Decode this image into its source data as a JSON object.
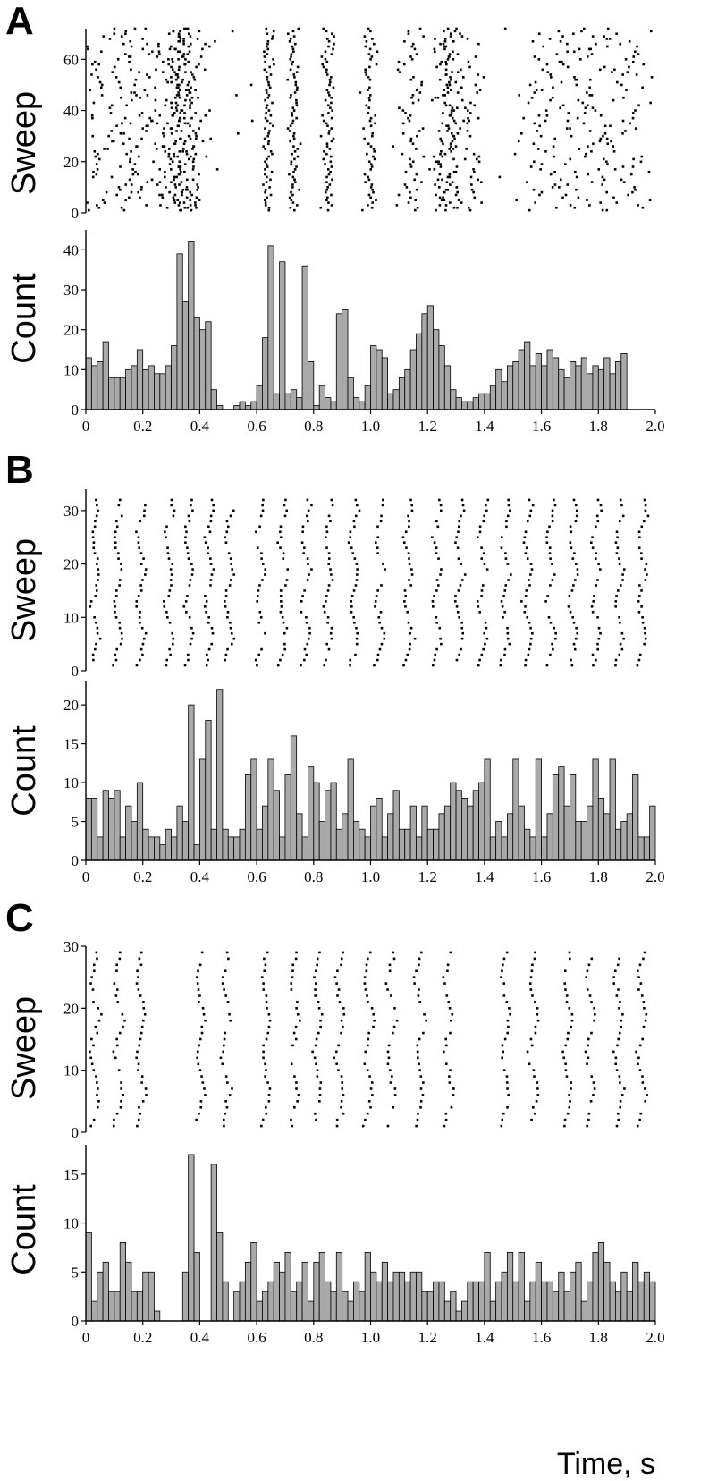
{
  "figure": {
    "xlabel": "Time, s"
  },
  "chart_data": [
    {
      "panel": "A",
      "type": "scatter",
      "kind": "raster",
      "xlim": [
        0,
        2.0
      ],
      "ylim": [
        0,
        72
      ],
      "ylabel": "Sweep",
      "xticks": [],
      "yticks": [
        0,
        20,
        40,
        60
      ],
      "sweeps": 72,
      "clusters": [
        {
          "c": 0.05,
          "s": 0.06,
          "p": 1.0,
          "n": 1,
          "d": 0
        },
        {
          "c": 0.15,
          "s": 0.05,
          "p": 1.0,
          "n": 1,
          "d": 0
        },
        {
          "c": 0.27,
          "s": 0.04,
          "p": 0.9,
          "n": 1,
          "d": 0
        },
        {
          "c": 0.33,
          "s": 0.02,
          "p": 1.0,
          "n": 2,
          "d": 0
        },
        {
          "c": 0.38,
          "s": 0.02,
          "p": 0.9,
          "n": 1,
          "d": 0
        },
        {
          "c": 0.45,
          "s": 0.02,
          "p": 0.05,
          "n": 1,
          "d": 0
        },
        {
          "c": 0.55,
          "s": 0.03,
          "p": 0.05,
          "n": 1,
          "d": 0
        },
        {
          "c": 0.64,
          "s": 0.01,
          "p": 1.0,
          "n": 1,
          "d": 0
        },
        {
          "c": 0.73,
          "s": 0.01,
          "p": 1.0,
          "n": 1,
          "d": 0
        },
        {
          "c": 0.85,
          "s": 0.012,
          "p": 1.0,
          "n": 1,
          "d": 0
        },
        {
          "c": 1.0,
          "s": 0.015,
          "p": 0.9,
          "n": 1,
          "d": 0
        },
        {
          "c": 1.13,
          "s": 0.03,
          "p": 0.9,
          "n": 1,
          "d": 0
        },
        {
          "c": 1.27,
          "s": 0.03,
          "p": 1.0,
          "n": 2,
          "d": 0
        },
        {
          "c": 1.36,
          "s": 0.02,
          "p": 0.5,
          "n": 1,
          "d": 0
        },
        {
          "c": 1.6,
          "s": 0.06,
          "p": 1.0,
          "n": 1,
          "d": 0
        },
        {
          "c": 1.75,
          "s": 0.06,
          "p": 1.0,
          "n": 1,
          "d": 0
        },
        {
          "c": 1.9,
          "s": 0.06,
          "p": 1.0,
          "n": 1,
          "d": 0
        }
      ]
    },
    {
      "panel": "A",
      "type": "bar",
      "kind": "histogram",
      "xlim": [
        0,
        2.0
      ],
      "ylim": [
        0,
        45
      ],
      "ylabel": "Count",
      "xticks": [
        0,
        0.2,
        0.4,
        0.6,
        0.8,
        1.0,
        1.2,
        1.4,
        1.6,
        1.8,
        2.0
      ],
      "xtick_labels": [
        "0",
        "0.2",
        "0.4",
        "0.6",
        "0.8",
        "1.0",
        "1.2",
        "1.4",
        "1.6",
        "1.8",
        "2.0"
      ],
      "yticks": [
        0,
        10,
        20,
        30,
        40
      ],
      "bin_start": 0,
      "bin_width": 0.02,
      "values": [
        13,
        11,
        12,
        17,
        8,
        8,
        8,
        10,
        11,
        15,
        10,
        11,
        9,
        9,
        11,
        16,
        39,
        27,
        42,
        23,
        20,
        22,
        5,
        1,
        0,
        0,
        1,
        2,
        1,
        2,
        6,
        18,
        41,
        4,
        37,
        4,
        5,
        3,
        36,
        12,
        1,
        6,
        3,
        2,
        24,
        25,
        8,
        3,
        2,
        6,
        16,
        15,
        13,
        4,
        5,
        8,
        10,
        15,
        19,
        24,
        26,
        20,
        16,
        11,
        5,
        3,
        2,
        2,
        3,
        4,
        4,
        6,
        10,
        7,
        11,
        12,
        15,
        17,
        11,
        14,
        11,
        15,
        13,
        10,
        8,
        12,
        11,
        13,
        9,
        11,
        10,
        13,
        9,
        12,
        14
      ]
    },
    {
      "panel": "B",
      "type": "scatter",
      "kind": "raster",
      "xlim": [
        0,
        2.0
      ],
      "ylim": [
        0,
        34
      ],
      "ylabel": "Sweep",
      "xticks": [],
      "yticks": [
        0,
        10,
        20,
        30
      ],
      "sweeps": 32,
      "chevrons": [
        0.02,
        0.1,
        0.18,
        0.28,
        0.35,
        0.42,
        0.49,
        0.6,
        0.68,
        0.76,
        0.84,
        0.93,
        1.02,
        1.12,
        1.22,
        1.3,
        1.38,
        1.46,
        1.54,
        1.62,
        1.7,
        1.78,
        1.86,
        1.94
      ]
    },
    {
      "panel": "B",
      "type": "bar",
      "kind": "histogram",
      "xlim": [
        0,
        2.0
      ],
      "ylim": [
        0,
        23
      ],
      "ylabel": "Count",
      "xticks": [
        0,
        0.2,
        0.4,
        0.6,
        0.8,
        1.0,
        1.2,
        1.4,
        1.6,
        1.8,
        2.0
      ],
      "xtick_labels": [
        "0",
        "0.2",
        "0.4",
        "0.6",
        "0.8",
        "1.0",
        "1.2",
        "1.4",
        "1.6",
        "1.8",
        "2.0"
      ],
      "yticks": [
        0,
        5,
        10,
        15,
        20
      ],
      "bin_start": 0,
      "bin_width": 0.02,
      "values": [
        8,
        8,
        3,
        9,
        8,
        9,
        3,
        7,
        5,
        10,
        4,
        3,
        3,
        2,
        4,
        3,
        7,
        5,
        20,
        2,
        13,
        18,
        4,
        22,
        4,
        3,
        3,
        4,
        11,
        13,
        4,
        7,
        13,
        9,
        3,
        11,
        16,
        6,
        3,
        12,
        10,
        5,
        9,
        10,
        4,
        6,
        13,
        5,
        4,
        3,
        7,
        8,
        3,
        6,
        9,
        4,
        4,
        7,
        3,
        7,
        4,
        4,
        6,
        7,
        10,
        9,
        8,
        7,
        9,
        10,
        13,
        3,
        5,
        3,
        6,
        13,
        7,
        4,
        3,
        13,
        3,
        6,
        11,
        12,
        7,
        11,
        5,
        5,
        7,
        13,
        8,
        6,
        13,
        4,
        5,
        6,
        11,
        3,
        3,
        7
      ]
    },
    {
      "panel": "C",
      "type": "scatter",
      "kind": "raster",
      "xlim": [
        0,
        2.0
      ],
      "ylim": [
        0,
        30
      ],
      "ylabel": "Sweep",
      "xticks": [],
      "yticks": [
        0,
        10,
        20,
        30
      ],
      "sweeps": 29,
      "chevrons": [
        0.02,
        0.1,
        0.18,
        0.39,
        0.48,
        0.62,
        0.72,
        0.8,
        0.88,
        0.98,
        1.06,
        1.16,
        1.26,
        1.46,
        1.56,
        1.68,
        1.76,
        1.86,
        1.94
      ]
    },
    {
      "panel": "C",
      "type": "bar",
      "kind": "histogram",
      "xlim": [
        0,
        2.0
      ],
      "ylim": [
        0,
        18
      ],
      "ylabel": "Count",
      "xticks": [
        0,
        0.2,
        0.4,
        0.6,
        0.8,
        1.0,
        1.2,
        1.4,
        1.6,
        1.8,
        2.0
      ],
      "xtick_labels": [
        "0",
        "0.2",
        "0.4",
        "0.6",
        "0.8",
        "1.0",
        "1.2",
        "1.4",
        "1.6",
        "1.8",
        "2.0"
      ],
      "yticks": [
        0,
        5,
        10,
        15
      ],
      "bin_start": 0,
      "bin_width": 0.02,
      "values": [
        9,
        2,
        5,
        6,
        3,
        3,
        8,
        6,
        3,
        3,
        5,
        5,
        1,
        0,
        0,
        0,
        0,
        5,
        17,
        7,
        0,
        0,
        16,
        9,
        4,
        0,
        3,
        4,
        6,
        8,
        2,
        3,
        4,
        6,
        5,
        7,
        3,
        4,
        6,
        2,
        6,
        7,
        4,
        3,
        7,
        3,
        2,
        4,
        3,
        7,
        5,
        4,
        6,
        4,
        5,
        5,
        4,
        5,
        5,
        3,
        3,
        4,
        4,
        2,
        3,
        1,
        2,
        4,
        4,
        4,
        7,
        2,
        4,
        5,
        7,
        4,
        7,
        2,
        4,
        6,
        4,
        4,
        3,
        5,
        3,
        5,
        6,
        2,
        4,
        7,
        8,
        6,
        4,
        3,
        5,
        3,
        6,
        4,
        5,
        4
      ]
    }
  ]
}
